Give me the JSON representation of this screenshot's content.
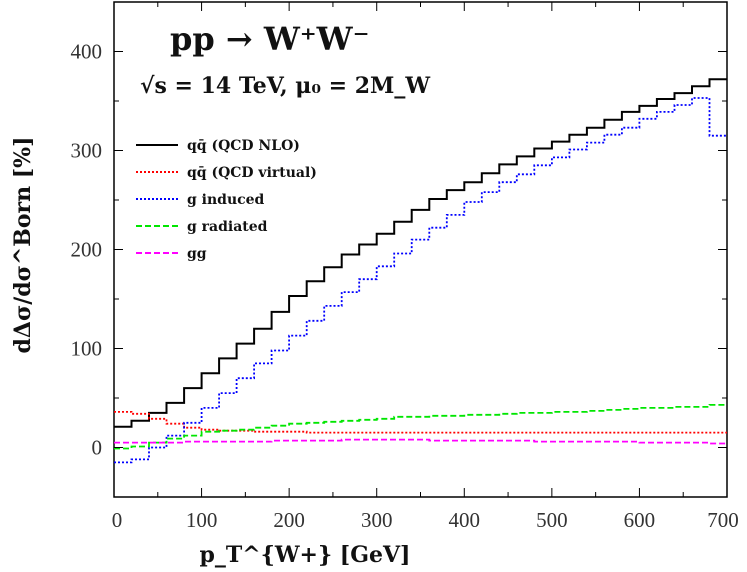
{
  "chart_data": {
    "type": "line",
    "step": true,
    "title": "pp → W⁺W⁻",
    "subtitle": "√s = 14 TeV, μ₀ = 2M_W",
    "xlabel": "p_T^{W+} [GeV]",
    "ylabel": "dΔσ/dσ^Born [%]",
    "xlim": [
      0,
      700
    ],
    "ylim": [
      -50,
      450
    ],
    "xticks": [
      0,
      100,
      200,
      300,
      400,
      500,
      600,
      700
    ],
    "xtick_labels": [
      "0",
      "100",
      "200",
      "300",
      "400",
      "500",
      "600",
      "700"
    ],
    "yticks": [
      0,
      100,
      200,
      300,
      400
    ],
    "ytick_labels": [
      "0",
      "100",
      "200",
      "300",
      "400"
    ],
    "legend_position": "left",
    "bin_edges": [
      0,
      20,
      40,
      60,
      80,
      100,
      120,
      140,
      160,
      180,
      200,
      220,
      240,
      260,
      280,
      300,
      320,
      340,
      360,
      380,
      400,
      420,
      440,
      460,
      480,
      500,
      520,
      540,
      560,
      580,
      600,
      620,
      640,
      660,
      680,
      700
    ],
    "series": [
      {
        "name": "qq̄ (QCD NLO)",
        "color": "#000000",
        "style": "solid",
        "values": [
          21,
          27,
          35,
          45,
          60,
          75,
          90,
          105,
          120,
          137,
          153,
          168,
          182,
          195,
          205,
          216,
          228,
          240,
          251,
          260,
          268,
          277,
          286,
          294,
          302,
          309,
          316,
          323,
          331,
          339,
          345,
          352,
          358,
          365,
          372
        ]
      },
      {
        "name": "qq̄ (QCD virtual)",
        "color": "#ff0000",
        "style": "dotted",
        "values": [
          36,
          34,
          29,
          24,
          20,
          18,
          17,
          17,
          16,
          16,
          16,
          15,
          15,
          15,
          15,
          15,
          15,
          15,
          15,
          15,
          15,
          15,
          15,
          15,
          15,
          15,
          15,
          15,
          15,
          15,
          15,
          15,
          15,
          15,
          15
        ]
      },
      {
        "name": "g induced",
        "color": "#0000ff",
        "style": "dotted",
        "values": [
          -15,
          -12,
          0,
          12,
          25,
          40,
          55,
          70,
          85,
          98,
          113,
          128,
          143,
          157,
          170,
          183,
          196,
          210,
          222,
          235,
          248,
          258,
          268,
          276,
          285,
          293,
          301,
          308,
          316,
          323,
          332,
          339,
          346,
          353,
          315
        ]
      },
      {
        "name": "g radiated",
        "color": "#00e600",
        "style": "dashed",
        "values": [
          -1,
          1,
          5,
          9,
          12,
          16,
          17,
          18,
          20,
          22,
          24,
          25,
          26,
          27,
          28,
          29,
          31,
          31,
          32,
          32,
          33,
          33,
          34,
          35,
          35,
          36,
          36,
          37,
          38,
          39,
          40,
          40,
          41,
          41,
          43
        ]
      },
      {
        "name": "gg",
        "color": "#ff00ff",
        "style": "dashed",
        "values": [
          5,
          5,
          5,
          5,
          6,
          6,
          6,
          6,
          6,
          7,
          7,
          7,
          7,
          8,
          8,
          8,
          8,
          8,
          7,
          7,
          7,
          7,
          7,
          7,
          6,
          6,
          6,
          6,
          6,
          6,
          5,
          5,
          5,
          5,
          4
        ]
      }
    ]
  }
}
